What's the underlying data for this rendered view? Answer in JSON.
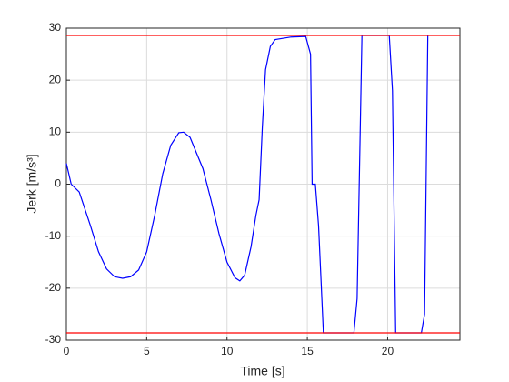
{
  "chart_data": {
    "type": "line",
    "xlabel": "Time [s]",
    "ylabel": "Jerk [m/s³]",
    "xlim": [
      0,
      24.5
    ],
    "ylim": [
      -30,
      30
    ],
    "xticks": [
      0,
      5,
      10,
      15,
      20
    ],
    "yticks": [
      -30,
      -20,
      -10,
      0,
      10,
      20,
      30
    ],
    "grid": true,
    "series": [
      {
        "color": "#0000ff",
        "x": [
          0,
          0.3,
          0.8,
          1.5,
          2,
          2.5,
          3,
          3.5,
          4,
          4.5,
          5,
          5.5,
          6,
          6.5,
          7,
          7.3,
          7.7,
          8.5,
          9,
          9.5,
          10,
          10.5,
          10.8,
          11.1,
          11.5,
          11.8,
          12,
          12.2,
          12.4,
          12.7,
          13,
          14,
          14.9,
          15.2,
          15.3,
          15.5,
          15.7,
          16,
          17.9,
          18.1,
          18.4,
          20.1,
          20.3,
          20.5,
          22.1,
          22.3,
          22.5
        ],
        "values": [
          4,
          0,
          -1.5,
          -8,
          -13,
          -16.3,
          -17.8,
          -18.1,
          -17.8,
          -16.5,
          -13,
          -6,
          2,
          7.5,
          9.9,
          10,
          9,
          3,
          -3,
          -9.5,
          -15,
          -18,
          -18.6,
          -17.5,
          -12,
          -6,
          -3,
          11,
          22,
          26.5,
          27.8,
          28.3,
          28.4,
          25,
          0,
          0,
          -8,
          -28.6,
          -28.6,
          -22,
          28.6,
          28.6,
          18,
          -28.6,
          -28.6,
          -25,
          28.6
        ]
      },
      {
        "color": "#ff0000",
        "x": [
          0,
          24.5
        ],
        "values": [
          28.6,
          28.6
        ]
      },
      {
        "color": "#ff0000",
        "x": [
          0,
          24.5
        ],
        "values": [
          -28.6,
          -28.6
        ]
      }
    ]
  }
}
